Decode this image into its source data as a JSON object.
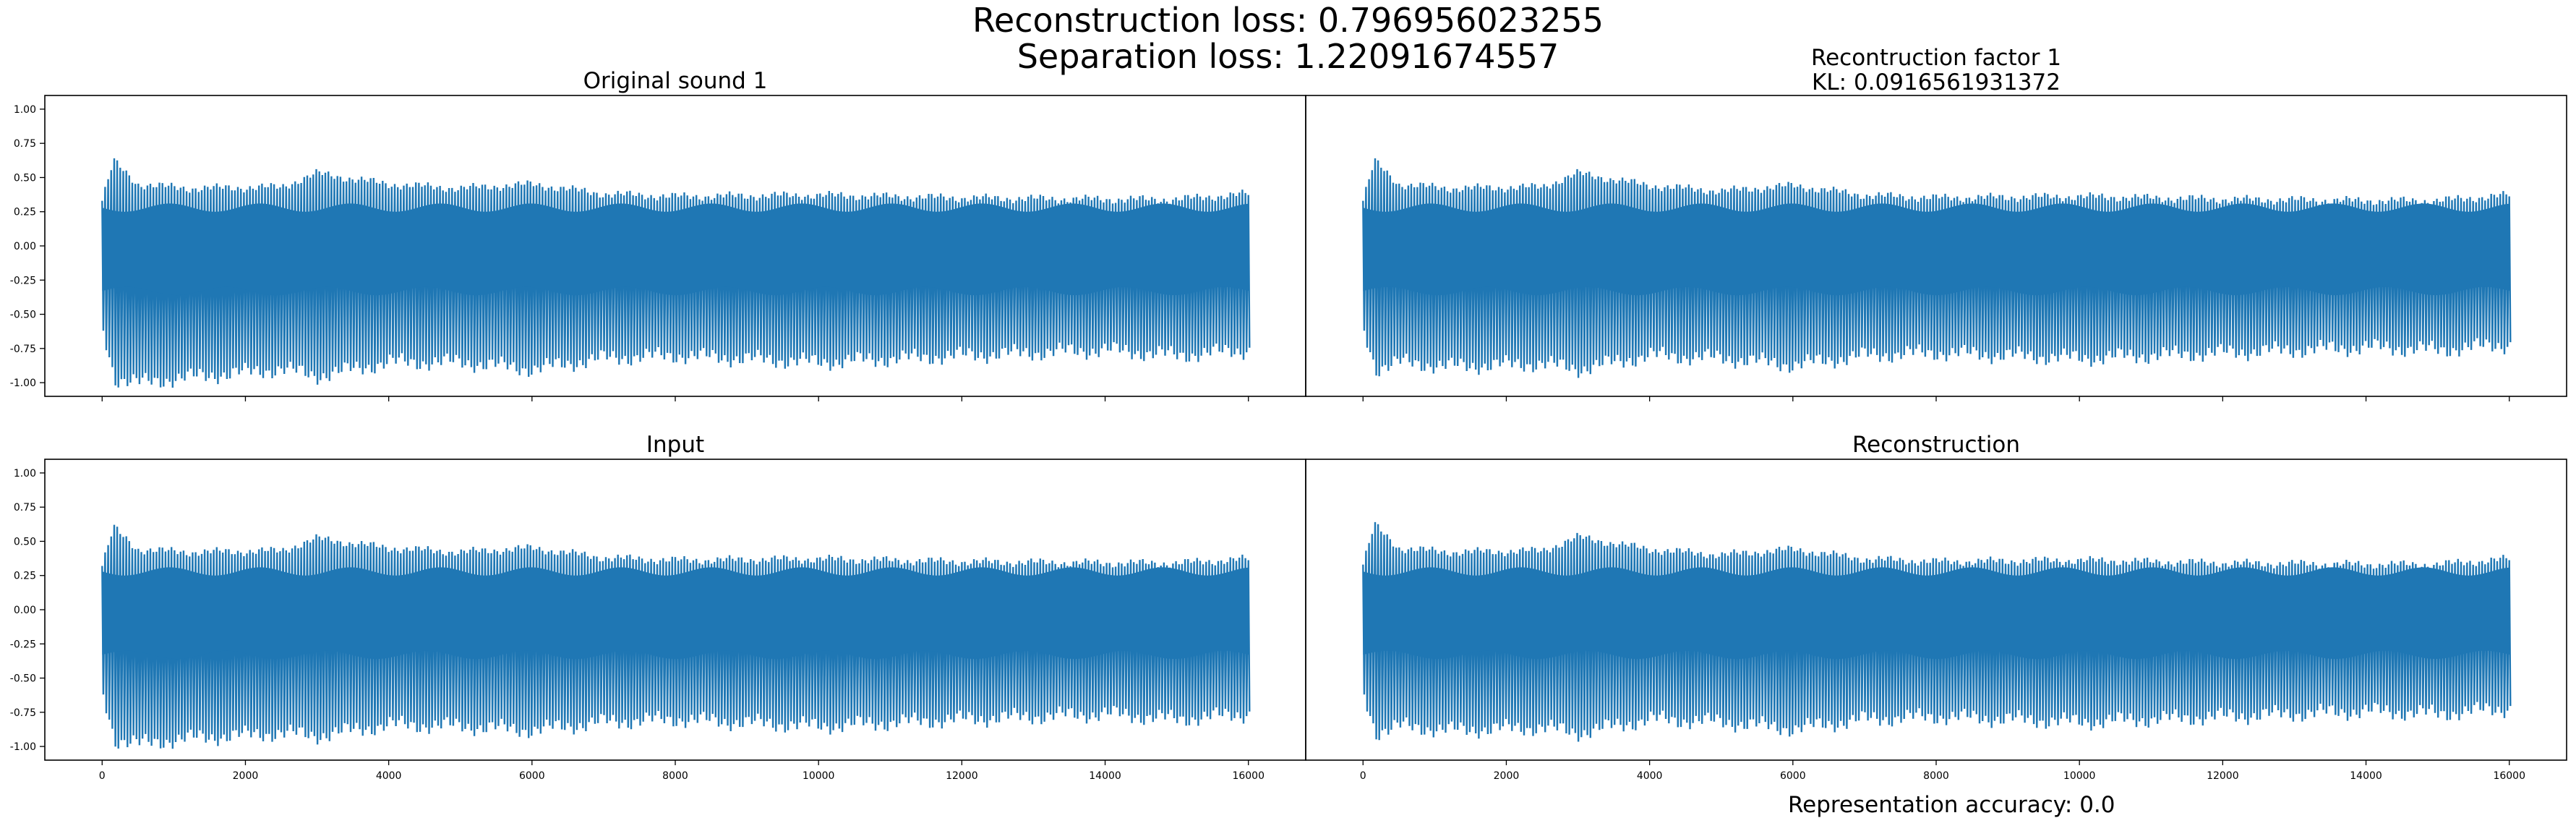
{
  "figure": {
    "suptitle_line1": "Reconstruction loss: 0.796956023255",
    "suptitle_line2": "Separation loss: 1.22091674557",
    "footer": "Representation accuracy: 0.0"
  },
  "chart_data": [
    {
      "type": "line",
      "title_line1": "Original sound 1",
      "title_line2": "",
      "x_range": [
        0,
        16000
      ],
      "xlim": [
        -800,
        16800
      ],
      "ylim": [
        -1.1,
        1.1
      ],
      "yticks": [
        -1.0,
        -0.75,
        -0.5,
        -0.25,
        0.0,
        0.25,
        0.5,
        0.75,
        1.0
      ],
      "xticks": [
        0,
        2000,
        4000,
        6000,
        8000,
        10000,
        12000,
        14000,
        16000
      ],
      "envelope": {
        "x": [
          0,
          160,
          500,
          1200,
          2500,
          3000,
          4000,
          5000,
          6000,
          7000,
          8000,
          10000,
          12000,
          14000,
          15000,
          16000
        ],
        "upper": [
          0.33,
          0.62,
          0.45,
          0.42,
          0.43,
          0.53,
          0.45,
          0.42,
          0.45,
          0.38,
          0.36,
          0.37,
          0.35,
          0.34,
          0.34,
          0.38
        ],
        "lower": [
          -0.62,
          -0.97,
          -1.0,
          -0.96,
          -0.9,
          -0.95,
          -0.85,
          -0.85,
          -0.9,
          -0.82,
          -0.8,
          -0.85,
          -0.8,
          -0.76,
          -0.8,
          -0.76
        ]
      },
      "color": "#1f77b4"
    },
    {
      "type": "line",
      "title_line1": "Recontruction factor 1",
      "title_line2": "KL: 0.0916561931372",
      "x_range": [
        0,
        16000
      ],
      "xlim": [
        -800,
        16800
      ],
      "ylim": [
        -1.1,
        1.1
      ],
      "yticks": [],
      "xticks": [
        0,
        2000,
        4000,
        6000,
        8000,
        10000,
        12000,
        14000,
        16000
      ],
      "envelope": {
        "x": [
          0,
          160,
          500,
          1200,
          2500,
          3000,
          4000,
          5000,
          6000,
          7000,
          8000,
          10000,
          12000,
          14000,
          15000,
          16000
        ],
        "upper": [
          0.33,
          0.62,
          0.45,
          0.42,
          0.43,
          0.53,
          0.44,
          0.4,
          0.44,
          0.37,
          0.35,
          0.36,
          0.34,
          0.33,
          0.33,
          0.37
        ],
        "lower": [
          -0.62,
          -0.9,
          -0.85,
          -0.88,
          -0.86,
          -0.9,
          -0.8,
          -0.82,
          -0.87,
          -0.8,
          -0.78,
          -0.82,
          -0.78,
          -0.74,
          -0.76,
          -0.72
        ]
      },
      "color": "#1f77b4"
    },
    {
      "type": "line",
      "title_line1": "Input",
      "title_line2": "",
      "x_range": [
        0,
        16000
      ],
      "xlim": [
        -800,
        16800
      ],
      "ylim": [
        -1.1,
        1.1
      ],
      "yticks": [
        -1.0,
        -0.75,
        -0.5,
        -0.25,
        0.0,
        0.25,
        0.5,
        0.75,
        1.0
      ],
      "xticks": [
        0,
        2000,
        4000,
        6000,
        8000,
        10000,
        12000,
        14000,
        16000
      ],
      "envelope": {
        "x": [
          0,
          160,
          500,
          1200,
          2500,
          3000,
          4000,
          5000,
          6000,
          7000,
          8000,
          10000,
          12000,
          14000,
          15000,
          16000
        ],
        "upper": [
          0.32,
          0.6,
          0.44,
          0.42,
          0.43,
          0.52,
          0.45,
          0.42,
          0.45,
          0.38,
          0.36,
          0.37,
          0.35,
          0.34,
          0.34,
          0.37
        ],
        "lower": [
          -0.62,
          -0.95,
          -0.98,
          -0.94,
          -0.9,
          -0.92,
          -0.84,
          -0.85,
          -0.88,
          -0.82,
          -0.8,
          -0.85,
          -0.8,
          -0.76,
          -0.8,
          -0.76
        ]
      },
      "color": "#1f77b4"
    },
    {
      "type": "line",
      "title_line1": "Reconstruction",
      "title_line2": "",
      "x_range": [
        0,
        16000
      ],
      "xlim": [
        -800,
        16800
      ],
      "ylim": [
        -1.1,
        1.1
      ],
      "yticks": [],
      "xticks": [
        0,
        2000,
        4000,
        6000,
        8000,
        10000,
        12000,
        14000,
        16000
      ],
      "envelope": {
        "x": [
          0,
          160,
          500,
          1200,
          2500,
          3000,
          4000,
          5000,
          6000,
          7000,
          8000,
          10000,
          12000,
          14000,
          15000,
          16000
        ],
        "upper": [
          0.33,
          0.62,
          0.45,
          0.42,
          0.43,
          0.53,
          0.44,
          0.4,
          0.44,
          0.37,
          0.35,
          0.36,
          0.34,
          0.33,
          0.33,
          0.37
        ],
        "lower": [
          -0.62,
          -0.9,
          -0.85,
          -0.88,
          -0.86,
          -0.9,
          -0.8,
          -0.82,
          -0.87,
          -0.8,
          -0.78,
          -0.82,
          -0.78,
          -0.74,
          -0.76,
          -0.72
        ]
      },
      "color": "#1f77b4"
    }
  ]
}
